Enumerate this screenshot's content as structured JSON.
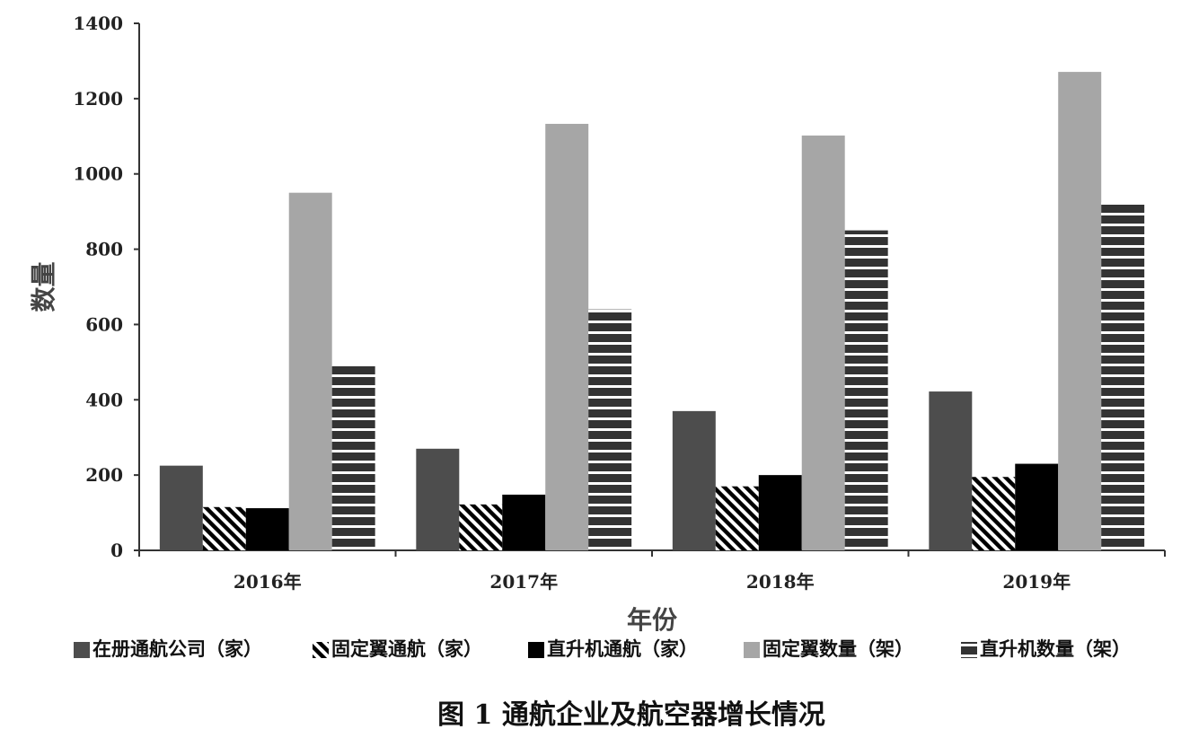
{
  "chart_data": {
    "type": "bar",
    "title": "",
    "caption": "图 1   通航企业及航空器增长情况",
    "xlabel": "年份",
    "ylabel": "数量",
    "ylim": [
      0,
      1400
    ],
    "yticks": [
      0,
      200,
      400,
      600,
      800,
      1000,
      1200,
      1400
    ],
    "grid": false,
    "legend": "bottom",
    "categories": [
      "2016年",
      "2017年",
      "2018年",
      "2019年"
    ],
    "series": [
      {
        "name": "在册通航公司（家）",
        "values": [
          225,
          270,
          370,
          422
        ],
        "color": "#4d4d4d",
        "pattern": "solid"
      },
      {
        "name": "固定翼通航（家）",
        "values": [
          115,
          122,
          170,
          195
        ],
        "color": "#000000",
        "pattern": "diagonal"
      },
      {
        "name": "直升机通航（家）",
        "values": [
          112,
          148,
          200,
          230
        ],
        "color": "#000000",
        "pattern": "solid"
      },
      {
        "name": "固定翼数量（架）",
        "values": [
          950,
          1133,
          1102,
          1271
        ],
        "color": "#a6a6a6",
        "pattern": "solid"
      },
      {
        "name": "直升机数量（架）",
        "values": [
          490,
          640,
          850,
          925
        ],
        "color": "#333333",
        "pattern": "horizontal"
      }
    ]
  }
}
